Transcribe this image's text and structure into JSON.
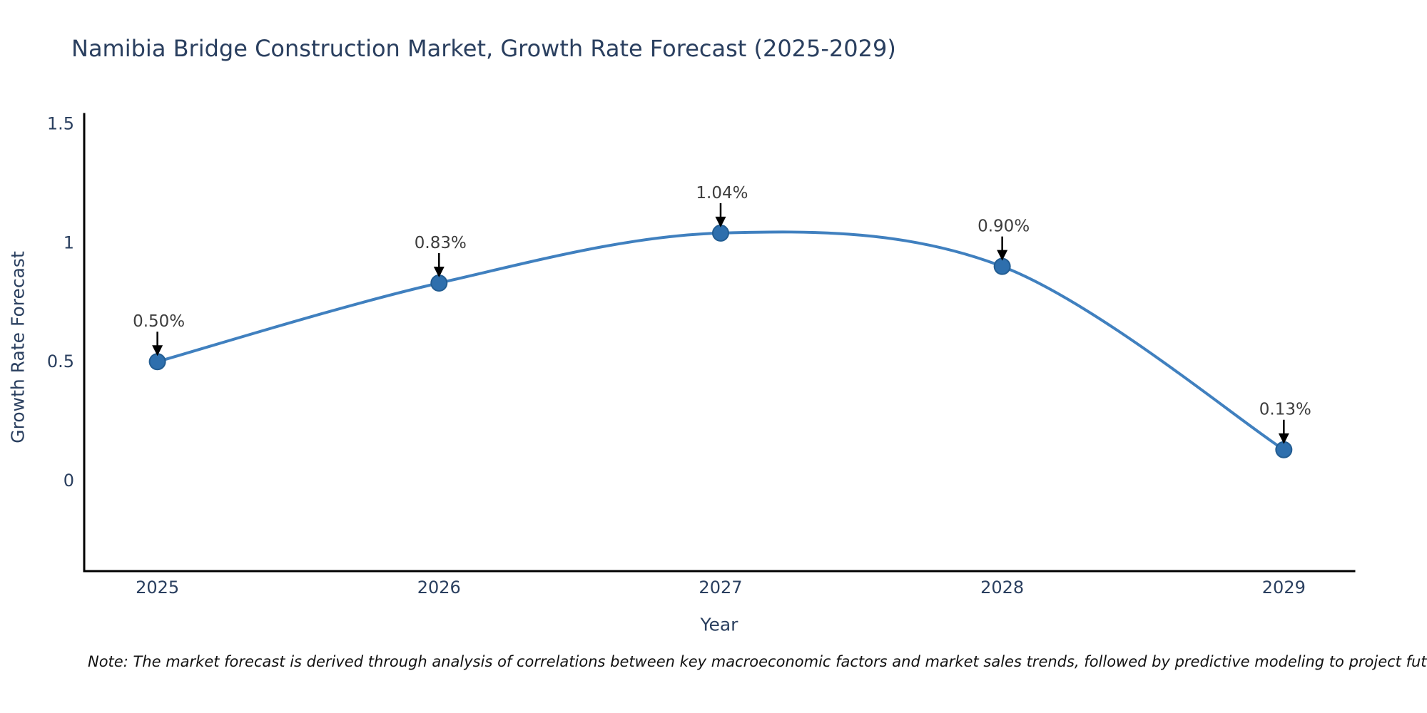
{
  "chart_data": {
    "type": "line",
    "title": "Namibia Bridge Construction Market, Growth Rate Forecast (2025-2029)",
    "x": [
      2025,
      2026,
      2027,
      2028,
      2029
    ],
    "y": [
      0.5,
      0.83,
      1.04,
      0.9,
      0.13
    ],
    "point_labels": [
      "0.50%",
      "0.83%",
      "1.04%",
      "0.90%",
      "0.13%"
    ],
    "xlabel": "Year",
    "ylabel": "Growth Rate Forecast",
    "xtick_labels": [
      "2025",
      "2026",
      "2027",
      "2028",
      "2029"
    ],
    "yticks": [
      0,
      0.5,
      1,
      1.5
    ],
    "ytick_labels": [
      "0",
      "0.5",
      "1",
      "1.5"
    ],
    "xlim": [
      2024.74,
      2029.25
    ],
    "ylim": [
      -0.38,
      1.54
    ],
    "grid": false,
    "legend": "none",
    "line_shape": "spline",
    "annotations_have_arrows": true,
    "note": "Note: The market forecast is derived through analysis of correlations between key macroeconomic factors and market sales trends, followed by predictive modeling to project future sales",
    "colors": {
      "background": "#ffffff",
      "line": "#4080bf",
      "marker_fill": "#2e6fad",
      "marker_edge": "#235d92",
      "axis_line": "#000000",
      "tick_text": "#2a3f5f",
      "title_text": "#2a3f5f",
      "annotation_text": "#3d3d3d",
      "arrow": "#000000",
      "note_text": "#111111"
    }
  }
}
